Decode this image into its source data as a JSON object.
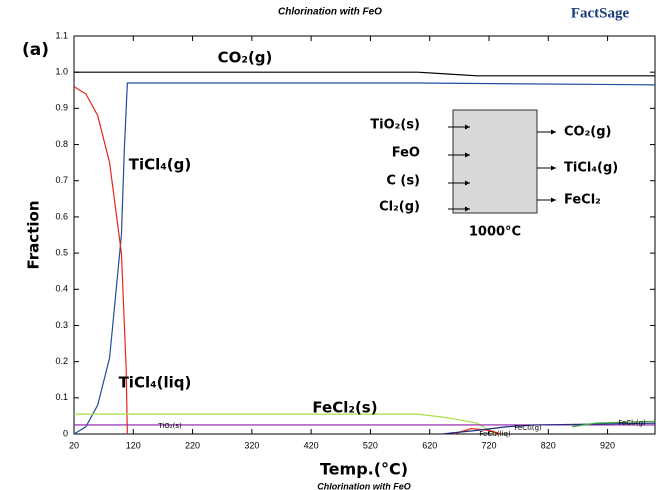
{
  "chart_data": {
    "type": "line",
    "title": "Chlorination with FeO",
    "logo": "FactSage",
    "panel_label": "(a)",
    "footer": "Chlorination with FeO",
    "xlabel": "Temp.(°C)",
    "ylabel": "Fraction",
    "xlim": [
      20,
      1000
    ],
    "ylim": [
      0,
      1.1
    ],
    "xticks": [
      20,
      120,
      220,
      320,
      420,
      520,
      620,
      720,
      820,
      920
    ],
    "yticks": [
      0,
      0.1,
      0.2,
      0.3,
      0.4,
      0.5,
      0.6,
      0.7,
      0.8,
      0.9,
      {
        "value": 1,
        "label": "1.0"
      },
      1.1
    ],
    "series": [
      {
        "name": "CO₂(g)",
        "color": "#000000",
        "x": [
          20,
          600,
          650,
          700,
          720,
          1000
        ],
        "values": [
          1,
          1,
          0.995,
          0.99,
          0.99,
          0.99
        ]
      },
      {
        "name": "TiCl₄(g)",
        "color": "#1f4e9c",
        "x": [
          20,
          40,
          60,
          80,
          100,
          105,
          110,
          112,
          600,
          1000
        ],
        "values": [
          0,
          0.02,
          0.08,
          0.21,
          0.55,
          0.79,
          0.97,
          0.97,
          0.97,
          0.965
        ]
      },
      {
        "name": "TiCl₄(liq)",
        "color": "#e8231c",
        "x": [
          20,
          40,
          60,
          80,
          100,
          108,
          110
        ],
        "values": [
          0.96,
          0.94,
          0.88,
          0.75,
          0.5,
          0.18,
          0
        ]
      },
      {
        "name": "FeCl₂(s)",
        "color": "#a6e04a",
        "x": [
          20,
          600,
          650,
          700,
          730
        ],
        "values": [
          0.055,
          0.055,
          0.045,
          0.03,
          0
        ]
      },
      {
        "name": "TiO₂(s)",
        "color": "#8b1fa8",
        "x": [
          20,
          1000
        ],
        "values": [
          0.025,
          0.025
        ]
      },
      {
        "name": "FeCl₂(liq)",
        "color": "#e8231c",
        "x": [
          660,
          690,
          720,
          740
        ],
        "values": [
          0,
          0.015,
          0.01,
          0
        ]
      },
      {
        "name": "FeCl₃(g)",
        "color": "#1f2f7a",
        "x": [
          640,
          700,
          750,
          800,
          1000
        ],
        "values": [
          0,
          0.01,
          0.02,
          0.025,
          0.03
        ]
      },
      {
        "name": "FeCl₂(g)",
        "color": "#3cb043",
        "x": [
          860,
          900,
          1000
        ],
        "values": [
          0.02,
          0.03,
          0.035
        ]
      }
    ],
    "inset": {
      "inputs": [
        "TiO₂(s)",
        "FeO",
        "C (s)",
        "Cl₂(g)"
      ],
      "outputs": [
        "CO₂(g)",
        "TiCl₄(g)",
        "FeCl₂"
      ],
      "label": "1000°C"
    }
  }
}
